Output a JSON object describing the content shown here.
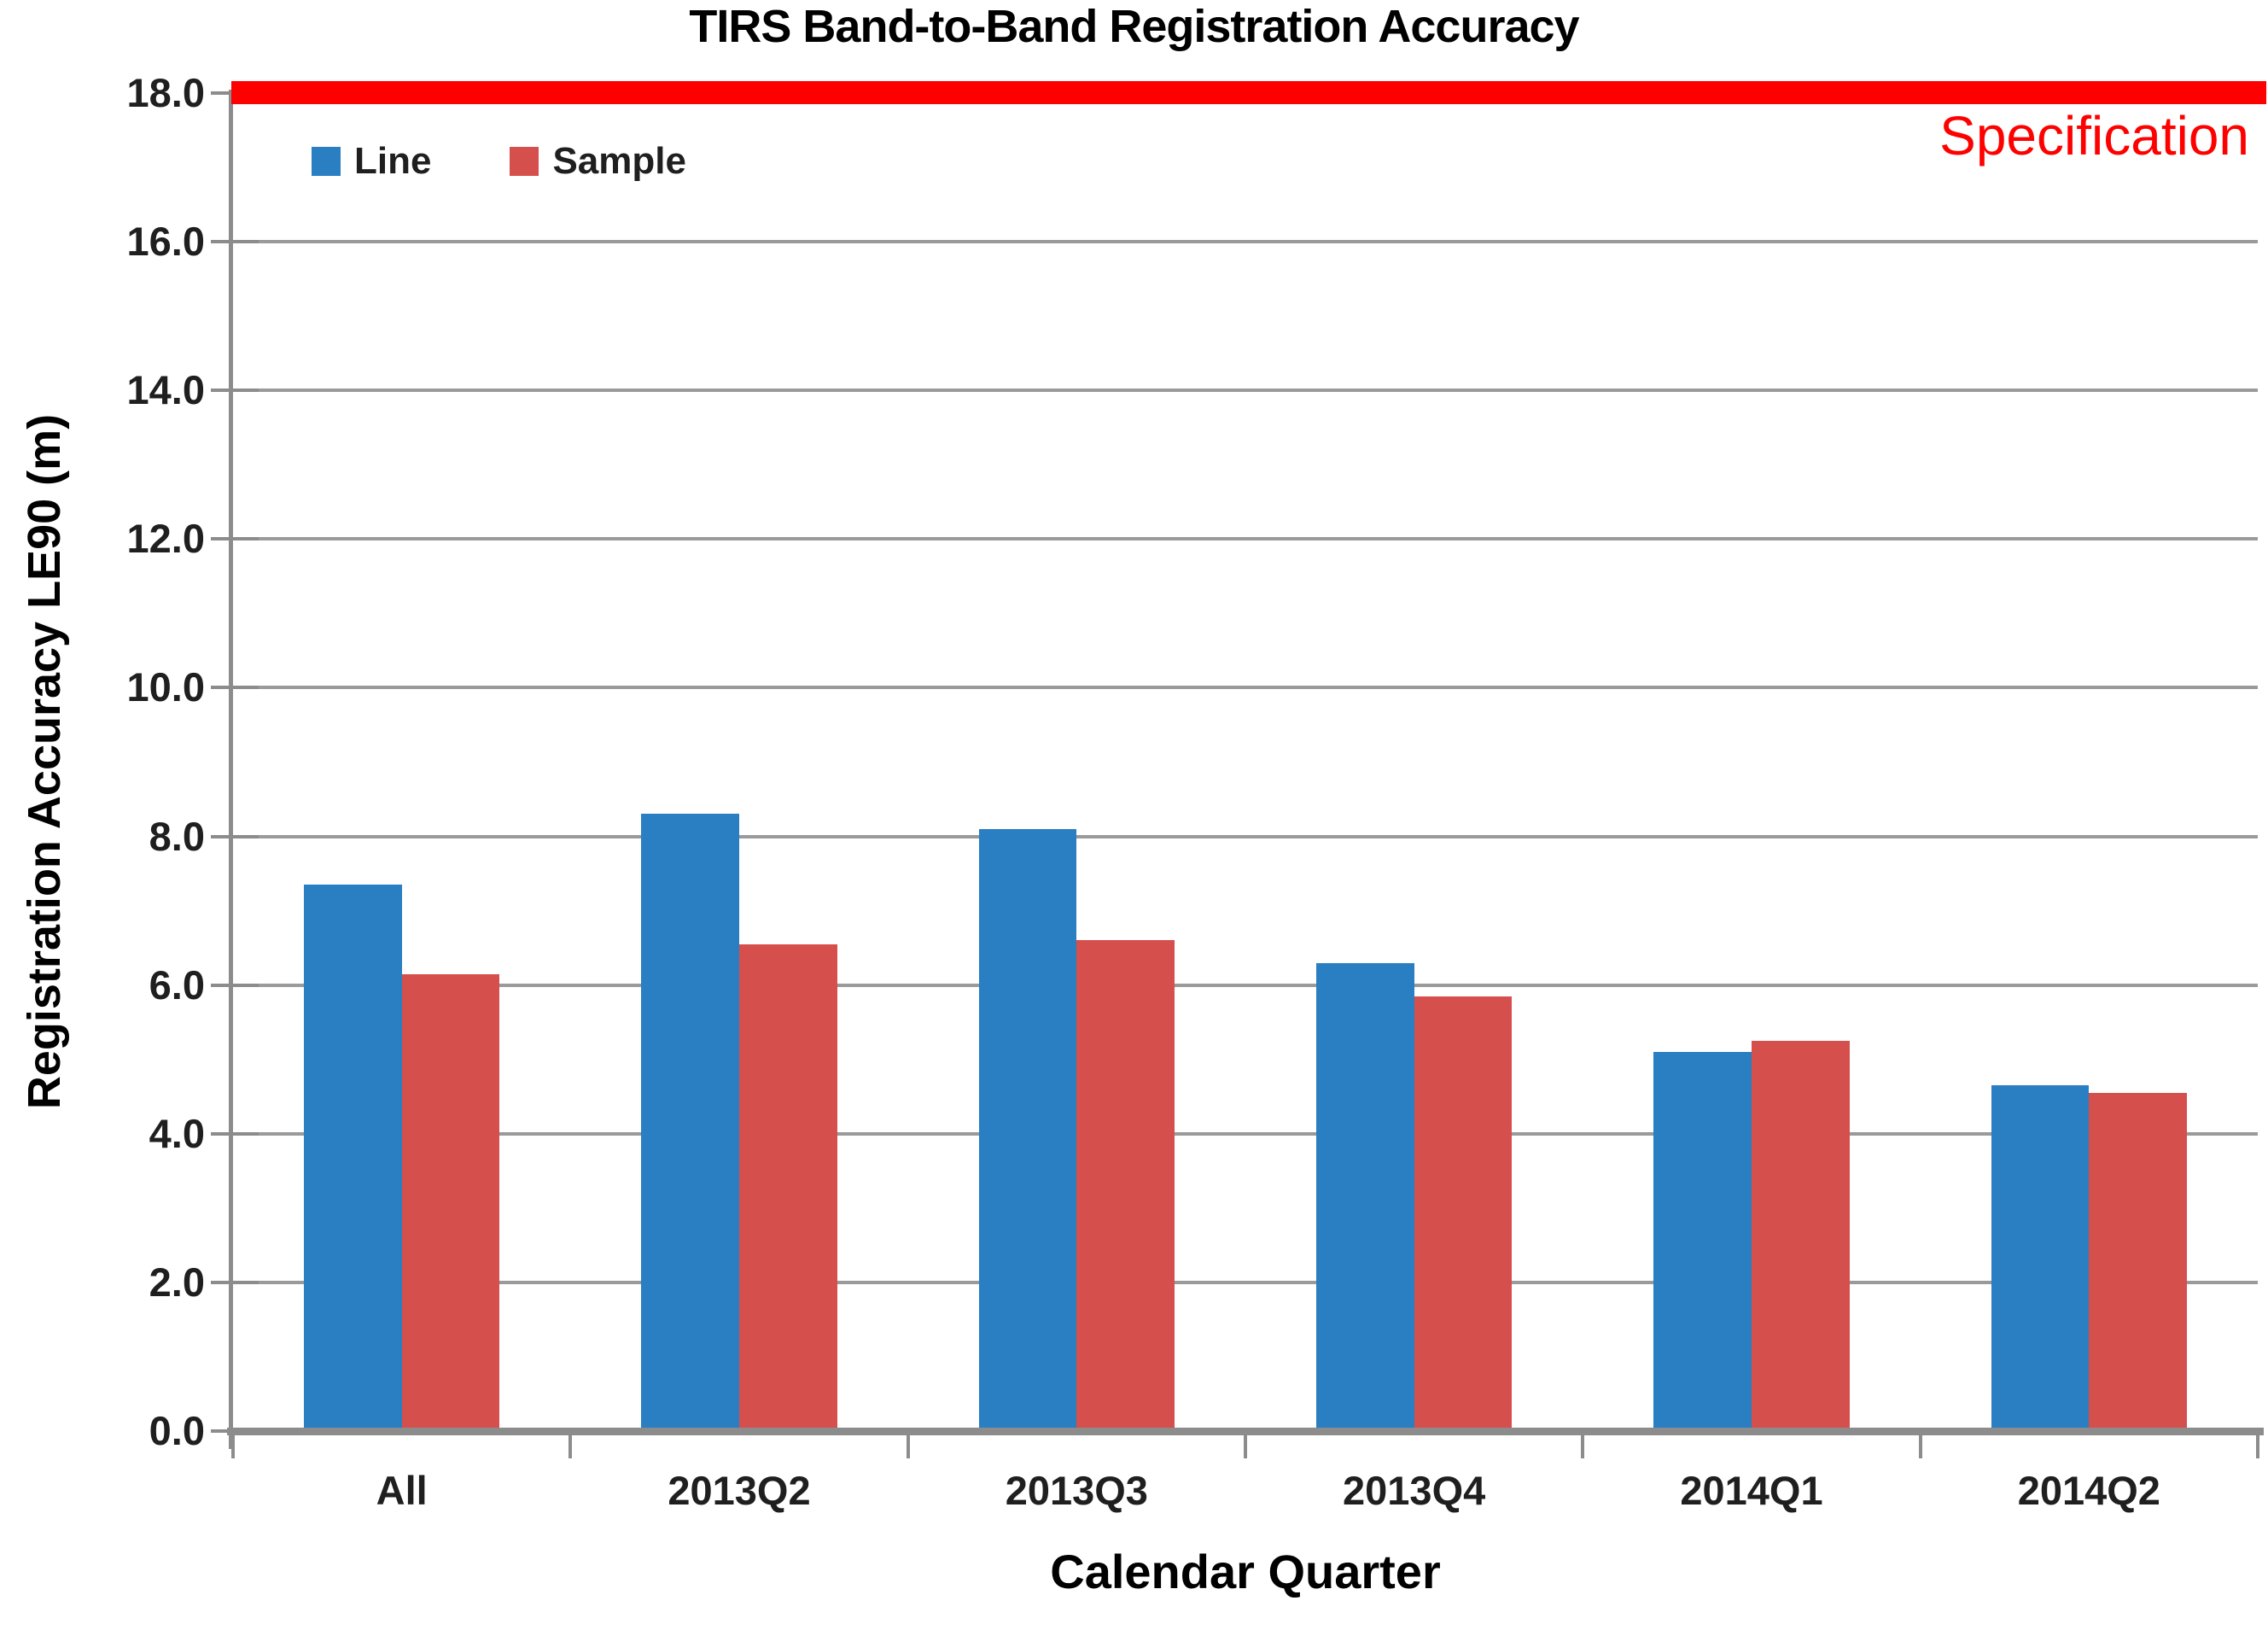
{
  "chart_data": {
    "type": "bar",
    "title": "TIRS Band-to-Band Registration Accuracy",
    "xlabel": "Calendar Quarter",
    "ylabel": "Registration Accuracy LE90 (m)",
    "categories": [
      "All",
      "2013Q2",
      "2013Q3",
      "2013Q4",
      "2014Q1",
      "2014Q2"
    ],
    "series": [
      {
        "name": "Line",
        "color": "#2A7EC2",
        "values": [
          7.35,
          8.3,
          8.1,
          6.3,
          5.1,
          4.65
        ]
      },
      {
        "name": "Sample",
        "color": "#D5504C",
        "values": [
          6.15,
          6.55,
          6.6,
          5.85,
          5.25,
          4.55
        ]
      }
    ],
    "ylim": [
      0,
      18
    ],
    "ytick_step": 2,
    "ytick_decimals": 1,
    "grid": true,
    "legend_position": "top-left-inside",
    "annotations": [
      {
        "type": "hline",
        "y": 18,
        "color": "#FF0000",
        "label": "Specification"
      }
    ]
  },
  "style_colors": {
    "grid": "#9A9A9A",
    "axis": "#8C8C8C",
    "tick_text": "#1F1F1F",
    "title_text": "#000000",
    "spec_text": "#FF0000"
  }
}
